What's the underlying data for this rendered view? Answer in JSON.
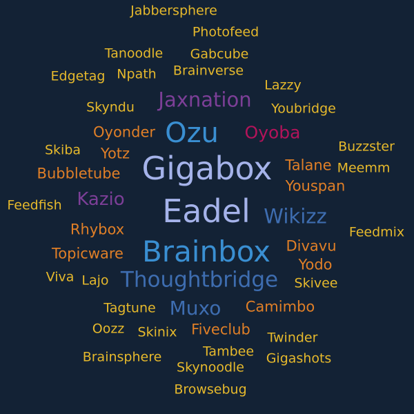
{
  "palette": {
    "background": "#132235",
    "gold": "#e6b92c",
    "orange": "#e07f27",
    "purple": "#7c3f97",
    "magenta": "#b2145a",
    "sky_blue": "#3a8fd2",
    "lavender": "#a5b3ea",
    "steel_blue": "#3e6db0"
  },
  "words": [
    {
      "text": "Gigabox",
      "color": "#a5b3ea",
      "weight": 100
    },
    {
      "text": "Eadel",
      "color": "#a5b3ea",
      "weight": 92
    },
    {
      "text": "Brainbox",
      "color": "#3a8fd2",
      "weight": 86
    },
    {
      "text": "Ozu",
      "color": "#3a8fd2",
      "weight": 80
    },
    {
      "text": "Thoughtbridge",
      "color": "#3e6db0",
      "weight": 64
    },
    {
      "text": "Jaxnation",
      "color": "#7c3f97",
      "weight": 62
    },
    {
      "text": "Wikizz",
      "color": "#3e6db0",
      "weight": 62
    },
    {
      "text": "Muxo",
      "color": "#3e6db0",
      "weight": 60
    },
    {
      "text": "Kazio",
      "color": "#7c3f97",
      "weight": 58
    },
    {
      "text": "Oyoba",
      "color": "#b2145a",
      "weight": 56
    },
    {
      "text": "Oyonder",
      "color": "#e07f27",
      "weight": 48
    },
    {
      "text": "Yotz",
      "color": "#e07f27",
      "weight": 48
    },
    {
      "text": "Bubbletube",
      "color": "#e07f27",
      "weight": 48
    },
    {
      "text": "Talane",
      "color": "#e07f27",
      "weight": 48
    },
    {
      "text": "Youspan",
      "color": "#e07f27",
      "weight": 48
    },
    {
      "text": "Rhybox",
      "color": "#e07f27",
      "weight": 48
    },
    {
      "text": "Topicware",
      "color": "#e07f27",
      "weight": 48
    },
    {
      "text": "Divavu",
      "color": "#e07f27",
      "weight": 48
    },
    {
      "text": "Yodo",
      "color": "#e07f27",
      "weight": 48
    },
    {
      "text": "Camimbo",
      "color": "#e07f27",
      "weight": 48
    },
    {
      "text": "Fiveclub",
      "color": "#e07f27",
      "weight": 48
    },
    {
      "text": "Jabbersphere",
      "color": "#e6b92c",
      "weight": 40
    },
    {
      "text": "Photofeed",
      "color": "#e6b92c",
      "weight": 40
    },
    {
      "text": "Tanoodle",
      "color": "#e6b92c",
      "weight": 40
    },
    {
      "text": "Gabcube",
      "color": "#e6b92c",
      "weight": 40
    },
    {
      "text": "Edgetag",
      "color": "#e6b92c",
      "weight": 40
    },
    {
      "text": "Npath",
      "color": "#e6b92c",
      "weight": 40
    },
    {
      "text": "Brainverse",
      "color": "#e6b92c",
      "weight": 40
    },
    {
      "text": "Lazzy",
      "color": "#e6b92c",
      "weight": 40
    },
    {
      "text": "Skyndu",
      "color": "#e6b92c",
      "weight": 40
    },
    {
      "text": "Youbridge",
      "color": "#e6b92c",
      "weight": 40
    },
    {
      "text": "Skiba",
      "color": "#e6b92c",
      "weight": 40
    },
    {
      "text": "Buzzster",
      "color": "#e6b92c",
      "weight": 40
    },
    {
      "text": "Meemm",
      "color": "#e6b92c",
      "weight": 40
    },
    {
      "text": "Feedfish",
      "color": "#e6b92c",
      "weight": 40
    },
    {
      "text": "Feedmix",
      "color": "#e6b92c",
      "weight": 40
    },
    {
      "text": "Viva",
      "color": "#e6b92c",
      "weight": 40
    },
    {
      "text": "Lajo",
      "color": "#e6b92c",
      "weight": 40
    },
    {
      "text": "Skivee",
      "color": "#e6b92c",
      "weight": 40
    },
    {
      "text": "Tagtune",
      "color": "#e6b92c",
      "weight": 40
    },
    {
      "text": "Oozz",
      "color": "#e6b92c",
      "weight": 40
    },
    {
      "text": "Skinix",
      "color": "#e6b92c",
      "weight": 40
    },
    {
      "text": "Twinder",
      "color": "#e6b92c",
      "weight": 40
    },
    {
      "text": "Tambee",
      "color": "#e6b92c",
      "weight": 40
    },
    {
      "text": "Brainsphere",
      "color": "#e6b92c",
      "weight": 40
    },
    {
      "text": "Skynoodle",
      "color": "#e6b92c",
      "weight": 40
    },
    {
      "text": "Gigashots",
      "color": "#e6b92c",
      "weight": 40
    },
    {
      "text": "Browsebug",
      "color": "#e6b92c",
      "weight": 40
    }
  ]
}
